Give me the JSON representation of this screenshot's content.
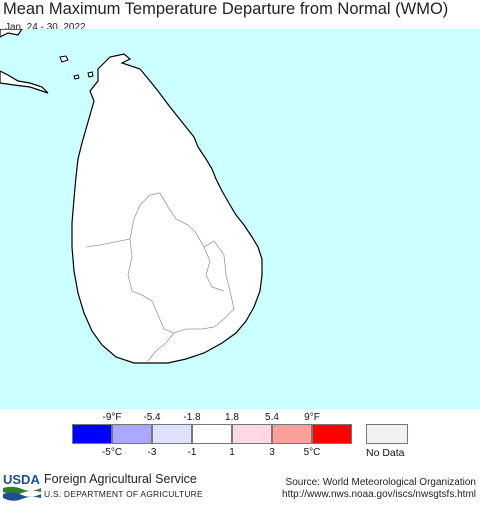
{
  "header": {
    "title": "Mean Maximum Temperature Departure from Normal (WMO)",
    "date_range": "Jan. 24 - 30, 2022"
  },
  "map": {
    "region": "Sri Lanka",
    "ocean_color": "#ccffff",
    "land_color": "#ffffff",
    "land_value_category": "-1 to 1 °C"
  },
  "legend": {
    "fahrenheit_labels": [
      "-9°F",
      "-5.4",
      "-1.8",
      "1.8",
      "5.4",
      "9°F"
    ],
    "celsius_labels": [
      "-5°C",
      "-3",
      "-1",
      "1",
      "3",
      "5°C"
    ],
    "colors": [
      "#0000ff",
      "#a9a9ff",
      "#e0e0ff",
      "#ffffff",
      "#ffd7e6",
      "#f7a19a",
      "#ff0000"
    ],
    "no_data_label": "No Data",
    "no_data_color": "#f2f0f0"
  },
  "footer": {
    "logo_text": "USDA",
    "agency": "Foreign Agricultural Service",
    "department": "U.S. DEPARTMENT OF AGRICULTURE",
    "source_line1": "Source: World Meteorological Organization",
    "source_line2": "http://www.nws.noaa.gov/iscs/nwsgtsfs.html"
  }
}
